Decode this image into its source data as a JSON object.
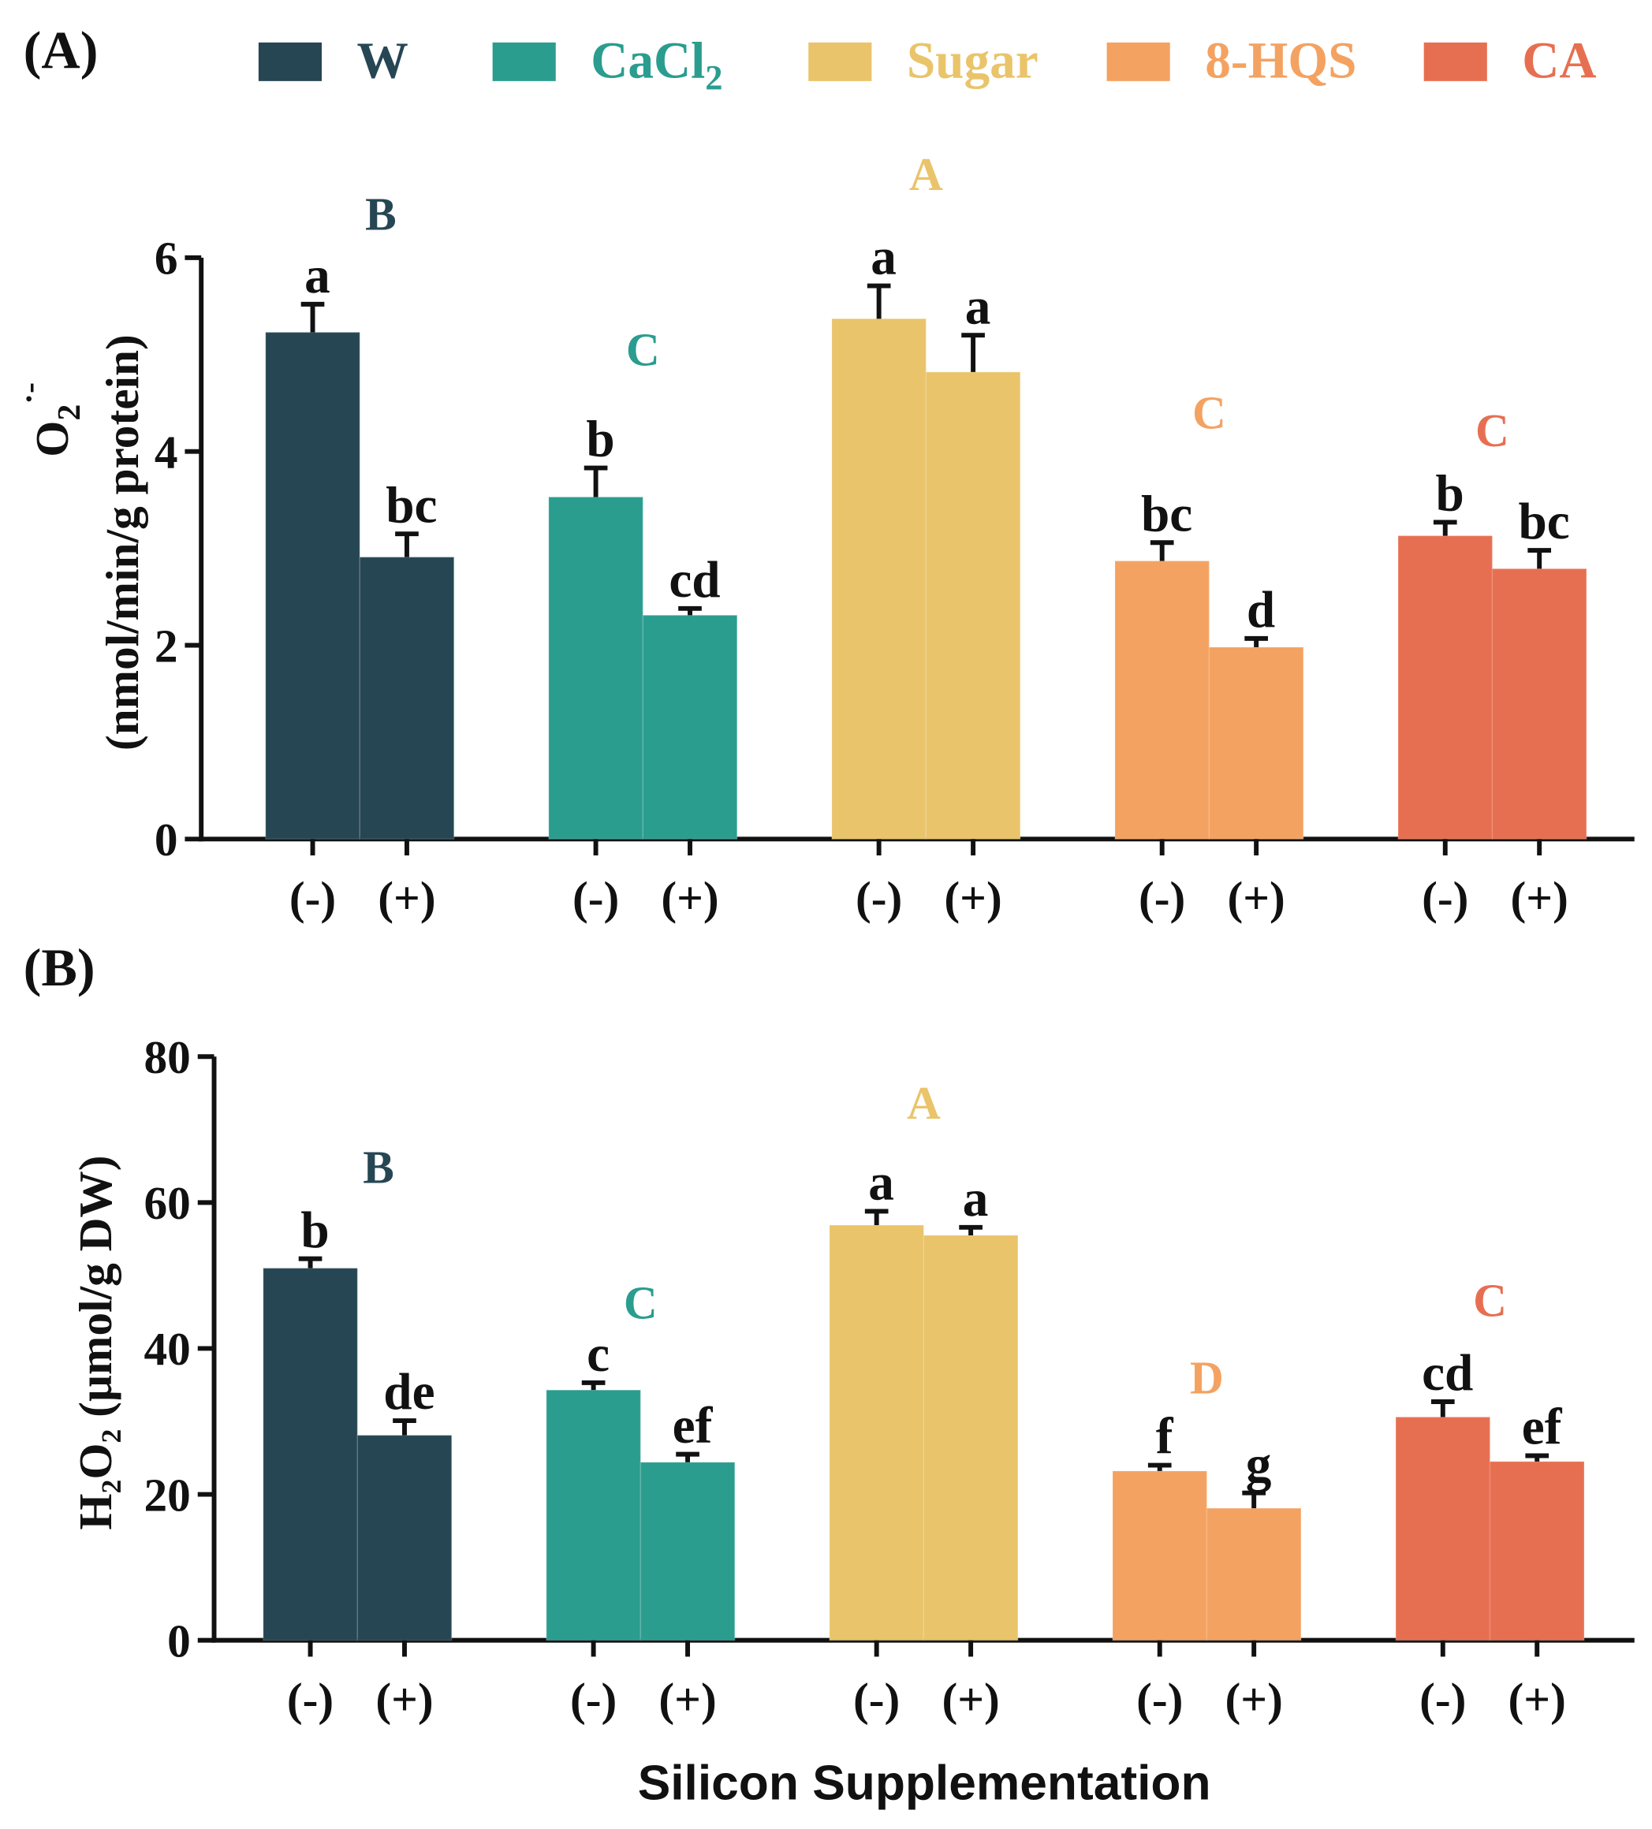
{
  "chart_data": [
    {
      "type": "bar",
      "panel_label": "(A)",
      "ylabel_main": "O",
      "ylabel_sub": "2",
      "ylabel_sup": "·-",
      "ylabel_units": "(nmol/min/g protein)",
      "ylim": [
        0,
        6
      ],
      "yticks": [
        "0",
        "2",
        "4",
        "6"
      ],
      "ytick_values": [
        0,
        2,
        4,
        6
      ],
      "categories": [
        "(-)",
        "(+)"
      ],
      "groups": [
        {
          "name": "W",
          "group_letter": "B",
          "values": [
            5.23,
            2.91
          ],
          "errors": [
            0.29,
            0.24
          ],
          "letters": [
            "a",
            "bc"
          ]
        },
        {
          "name": "CaCl2",
          "group_letter": "C",
          "values": [
            3.53,
            2.31
          ],
          "errors": [
            0.3,
            0.07
          ],
          "letters": [
            "b",
            "cd"
          ]
        },
        {
          "name": "Sugar",
          "group_letter": "A",
          "values": [
            5.37,
            4.82
          ],
          "errors": [
            0.34,
            0.38
          ],
          "letters": [
            "a",
            "a"
          ]
        },
        {
          "name": "8-HQS",
          "group_letter": "C",
          "values": [
            2.87,
            1.98
          ],
          "errors": [
            0.19,
            0.09
          ],
          "letters": [
            "bc",
            "d"
          ]
        },
        {
          "name": "CA",
          "group_letter": "C",
          "values": [
            3.13,
            2.79
          ],
          "errors": [
            0.14,
            0.19
          ],
          "letters": [
            "b",
            "bc"
          ]
        }
      ]
    },
    {
      "type": "bar",
      "panel_label": "(B)",
      "ylabel_main": "H₂O₂ (µmol/g DW)",
      "ylim": [
        0,
        80
      ],
      "yticks": [
        "0",
        "20",
        "40",
        "60",
        "80"
      ],
      "ytick_values": [
        0,
        20,
        40,
        60,
        80
      ],
      "xlabel": "Silicon Supplementation",
      "categories": [
        "(-)",
        "(+)"
      ],
      "groups": [
        {
          "name": "W",
          "group_letter": "B",
          "values": [
            51.0,
            28.1
          ],
          "errors": [
            1.3,
            2.0
          ],
          "letters": [
            "b",
            "de"
          ]
        },
        {
          "name": "CaCl2",
          "group_letter": "C",
          "values": [
            34.3,
            24.4
          ],
          "errors": [
            1.0,
            1.1
          ],
          "letters": [
            "c",
            "ef"
          ]
        },
        {
          "name": "Sugar",
          "group_letter": "A",
          "values": [
            56.9,
            55.5
          ],
          "errors": [
            1.9,
            1.1
          ],
          "letters": [
            "a",
            "a"
          ]
        },
        {
          "name": "8-HQS",
          "group_letter": "D",
          "values": [
            23.2,
            18.1
          ],
          "errors": [
            0.8,
            2.1
          ],
          "letters": [
            "f",
            "g"
          ]
        },
        {
          "name": "CA",
          "group_letter": "C",
          "values": [
            30.6,
            24.5
          ],
          "errors": [
            2.1,
            0.8
          ],
          "letters": [
            "cd",
            "ef"
          ]
        }
      ]
    }
  ],
  "legend": {
    "position": "top",
    "items": [
      {
        "label": "W",
        "color": "#264653"
      },
      {
        "label": "CaCl",
        "sub": "2",
        "color": "#2A9D8F"
      },
      {
        "label": "Sugar",
        "color": "#E9C46A"
      },
      {
        "label": "8-HQS",
        "color": "#F4A261"
      },
      {
        "label": "CA",
        "color": "#E76F51"
      }
    ]
  }
}
